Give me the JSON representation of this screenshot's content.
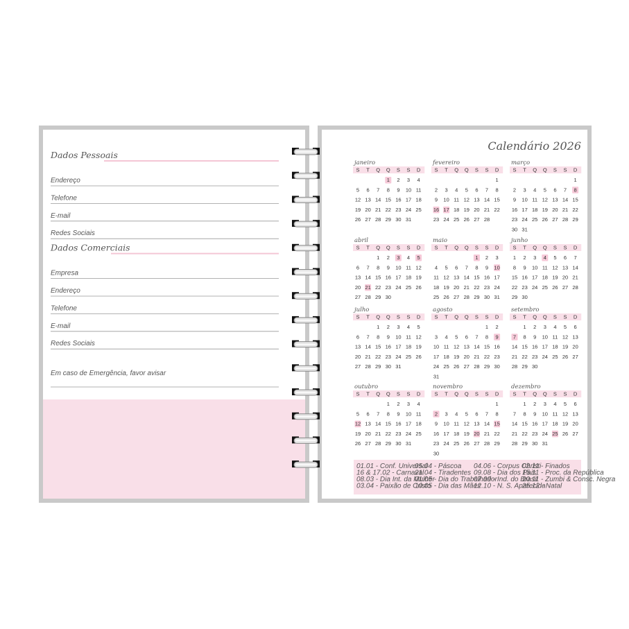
{
  "left_page": {
    "sections": [
      {
        "title": "Dados Pessoais",
        "fields": [
          "Endereço",
          "Telefone",
          "E-mail",
          "Redes Sociais"
        ]
      },
      {
        "title": "Dados Comerciais",
        "fields": [
          "Empresa",
          "Endereço",
          "Telefone",
          "E-mail",
          "Redes Sociais"
        ]
      }
    ],
    "emergency": "Em caso de Emergência, favor avisar"
  },
  "calendar": {
    "title": "Calendário 2026",
    "weekdays": [
      "S",
      "T",
      "Q",
      "Q",
      "S",
      "S",
      "D"
    ],
    "months": [
      {
        "name": "janeiro",
        "highlighted": [
          1
        ],
        "weeks": [
          [
            null,
            null,
            null,
            1,
            2,
            3,
            4
          ],
          [
            5,
            6,
            7,
            8,
            9,
            10,
            11
          ],
          [
            12,
            13,
            14,
            15,
            16,
            17,
            18
          ],
          [
            19,
            20,
            21,
            22,
            23,
            24,
            25
          ],
          [
            26,
            27,
            28,
            29,
            30,
            31
          ]
        ]
      },
      {
        "name": "fevereiro",
        "highlighted": [
          16,
          17
        ],
        "weeks": [
          [
            null,
            null,
            null,
            null,
            null,
            null,
            1
          ],
          [
            2,
            3,
            4,
            5,
            6,
            7,
            8
          ],
          [
            9,
            10,
            11,
            12,
            13,
            14,
            15
          ],
          [
            16,
            17,
            18,
            19,
            20,
            21,
            22
          ],
          [
            23,
            24,
            25,
            26,
            27,
            28
          ]
        ]
      },
      {
        "name": "março",
        "highlighted": [
          8
        ],
        "weeks": [
          [
            null,
            null,
            null,
            null,
            null,
            null,
            1
          ],
          [
            2,
            3,
            4,
            5,
            6,
            7,
            8
          ],
          [
            9,
            10,
            11,
            12,
            13,
            14,
            15
          ],
          [
            16,
            17,
            18,
            19,
            20,
            21,
            22
          ],
          [
            23,
            24,
            25,
            26,
            27,
            28,
            29
          ],
          [
            30,
            31
          ]
        ]
      },
      {
        "name": "abril",
        "highlighted": [
          3,
          5,
          21
        ],
        "weeks": [
          [
            null,
            null,
            1,
            2,
            3,
            4,
            5
          ],
          [
            6,
            7,
            8,
            9,
            10,
            11,
            12
          ],
          [
            13,
            14,
            15,
            16,
            17,
            18,
            19
          ],
          [
            20,
            21,
            22,
            23,
            24,
            25,
            26
          ],
          [
            27,
            28,
            29,
            30
          ]
        ]
      },
      {
        "name": "maio",
        "highlighted": [
          1,
          10
        ],
        "weeks": [
          [
            null,
            null,
            null,
            null,
            1,
            2,
            3
          ],
          [
            4,
            5,
            6,
            7,
            8,
            9,
            10
          ],
          [
            11,
            12,
            13,
            14,
            15,
            16,
            17
          ],
          [
            18,
            19,
            20,
            21,
            22,
            23,
            24
          ],
          [
            25,
            26,
            27,
            28,
            29,
            30,
            31
          ]
        ]
      },
      {
        "name": "junho",
        "highlighted": [
          4
        ],
        "weeks": [
          [
            1,
            2,
            3,
            4,
            5,
            6,
            7
          ],
          [
            8,
            9,
            10,
            11,
            12,
            13,
            14
          ],
          [
            15,
            16,
            17,
            18,
            19,
            20,
            21
          ],
          [
            22,
            23,
            24,
            25,
            26,
            27,
            28
          ],
          [
            29,
            30
          ]
        ]
      },
      {
        "name": "julho",
        "highlighted": [],
        "weeks": [
          [
            null,
            null,
            1,
            2,
            3,
            4,
            5
          ],
          [
            6,
            7,
            8,
            9,
            10,
            11,
            12
          ],
          [
            13,
            14,
            15,
            16,
            17,
            18,
            19
          ],
          [
            20,
            21,
            22,
            23,
            24,
            25,
            26
          ],
          [
            27,
            28,
            29,
            30,
            31
          ]
        ]
      },
      {
        "name": "agosto",
        "highlighted": [
          9
        ],
        "weeks": [
          [
            null,
            null,
            null,
            null,
            null,
            1,
            2
          ],
          [
            3,
            4,
            5,
            6,
            7,
            8,
            9
          ],
          [
            10,
            11,
            12,
            13,
            14,
            15,
            16
          ],
          [
            17,
            18,
            19,
            20,
            21,
            22,
            23
          ],
          [
            24,
            25,
            26,
            27,
            28,
            29,
            30
          ],
          [
            31
          ]
        ]
      },
      {
        "name": "setembro",
        "highlighted": [
          7
        ],
        "weeks": [
          [
            null,
            1,
            2,
            3,
            4,
            5,
            6
          ],
          [
            7,
            8,
            9,
            10,
            11,
            12,
            13
          ],
          [
            14,
            15,
            16,
            17,
            18,
            19,
            20
          ],
          [
            21,
            22,
            23,
            24,
            25,
            26,
            27
          ],
          [
            28,
            29,
            30
          ]
        ]
      },
      {
        "name": "outubro",
        "highlighted": [
          12
        ],
        "weeks": [
          [
            null,
            null,
            null,
            1,
            2,
            3,
            4
          ],
          [
            5,
            6,
            7,
            8,
            9,
            10,
            11
          ],
          [
            12,
            13,
            14,
            15,
            16,
            17,
            18
          ],
          [
            19,
            20,
            21,
            22,
            23,
            24,
            25
          ],
          [
            26,
            27,
            28,
            29,
            30,
            31
          ]
        ]
      },
      {
        "name": "novembro",
        "highlighted": [
          2,
          15,
          20
        ],
        "weeks": [
          [
            null,
            null,
            null,
            null,
            null,
            null,
            1
          ],
          [
            2,
            3,
            4,
            5,
            6,
            7,
            8
          ],
          [
            9,
            10,
            11,
            12,
            13,
            14,
            15
          ],
          [
            16,
            17,
            18,
            19,
            20,
            21,
            22
          ],
          [
            23,
            24,
            25,
            26,
            27,
            28,
            29
          ],
          [
            30
          ]
        ]
      },
      {
        "name": "dezembro",
        "highlighted": [
          25
        ],
        "weeks": [
          [
            null,
            1,
            2,
            3,
            4,
            5,
            6
          ],
          [
            7,
            8,
            9,
            10,
            11,
            12,
            13
          ],
          [
            14,
            15,
            16,
            17,
            18,
            19,
            20
          ],
          [
            21,
            22,
            23,
            24,
            25,
            26,
            27
          ],
          [
            28,
            29,
            30,
            31
          ]
        ]
      }
    ],
    "holidays": [
      [
        "01.01 - Conf. Universal",
        "16 & 17.02 - Carnaval",
        "08.03 - Dia Int. da Mulher",
        "03.04 - Paixão de Cristo"
      ],
      [
        "05.04 - Páscoa",
        "21.04 - Tiradentes",
        "01.05 - Dia do Trabalhador",
        "10.05 - Dia das Mães"
      ],
      [
        "04.06 - Corpus Christi",
        "09.08 - Dia dos Pais",
        "07.09 - Ind. do Brasil",
        "12.10 - N. S. Aparecida"
      ],
      [
        "02.11 - Finados",
        "15.11 - Proc. da República",
        "20.11 - Zumbi & Consc. Negra",
        "25.12 - Natal"
      ]
    ]
  }
}
